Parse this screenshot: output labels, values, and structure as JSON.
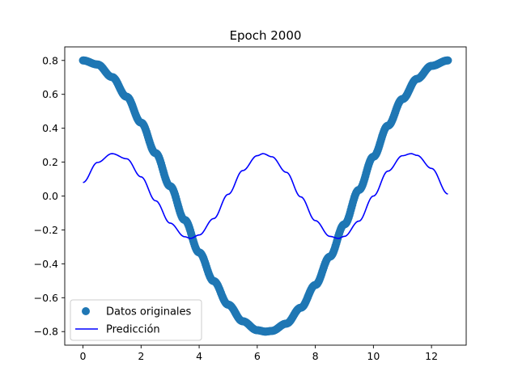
{
  "chart_data": {
    "type": "scatter",
    "title": "Epoch 2000",
    "xlabel": "",
    "ylabel": "",
    "xlim": [
      -0.628,
      13.195
    ],
    "ylim": [
      -0.88,
      0.88
    ],
    "xticks": [
      0,
      2,
      4,
      6,
      8,
      10,
      12
    ],
    "xtick_labels": [
      "0",
      "2",
      "4",
      "6",
      "8",
      "10",
      "12"
    ],
    "yticks": [
      -0.8,
      -0.6,
      -0.4,
      -0.2,
      0.0,
      0.2,
      0.4,
      0.6,
      0.8
    ],
    "ytick_labels": [
      "−0.8",
      "−0.6",
      "−0.4",
      "−0.2",
      "0.0",
      "0.2",
      "0.4",
      "0.6",
      "0.8"
    ],
    "grid": false,
    "legend": {
      "placement": "lower-left",
      "entries": [
        "Datos originales",
        "Predicción"
      ]
    },
    "series": [
      {
        "name": "Datos originales",
        "kind": "scatter",
        "color": "#1f77b4",
        "x": [
          0.0,
          0.5,
          1.0,
          1.5,
          2.0,
          2.5,
          3.0,
          3.5,
          4.0,
          4.5,
          5.0,
          5.5,
          6.0,
          6.283,
          6.5,
          7.0,
          7.5,
          8.0,
          8.5,
          9.0,
          9.5,
          10.0,
          10.5,
          11.0,
          11.5,
          12.0,
          12.566
        ],
        "y": [
          0.8,
          0.776,
          0.702,
          0.586,
          0.433,
          0.253,
          0.058,
          -0.141,
          -0.333,
          -0.502,
          -0.641,
          -0.739,
          -0.792,
          -0.8,
          -0.796,
          -0.753,
          -0.659,
          -0.525,
          -0.358,
          -0.167,
          0.036,
          0.232,
          0.415,
          0.572,
          0.691,
          0.768,
          0.8
        ]
      },
      {
        "name": "Predicción",
        "kind": "line",
        "color": "#0000ff",
        "x": [
          0.0,
          0.5,
          1.0,
          1.5,
          2.0,
          2.5,
          3.0,
          3.5,
          3.7,
          4.0,
          4.5,
          5.0,
          5.5,
          6.0,
          6.2,
          6.5,
          7.0,
          7.5,
          8.0,
          8.5,
          8.8,
          9.0,
          9.5,
          10.0,
          10.5,
          11.0,
          11.3,
          11.5,
          12.0,
          12.566
        ],
        "y": [
          0.08,
          0.198,
          0.25,
          0.22,
          0.113,
          -0.028,
          -0.16,
          -0.24,
          -0.25,
          -0.23,
          -0.133,
          0.01,
          0.15,
          0.238,
          0.25,
          0.232,
          0.14,
          -0.005,
          -0.145,
          -0.238,
          -0.25,
          -0.238,
          -0.148,
          0.0,
          0.147,
          0.238,
          0.25,
          0.24,
          0.163,
          0.012
        ]
      }
    ]
  }
}
